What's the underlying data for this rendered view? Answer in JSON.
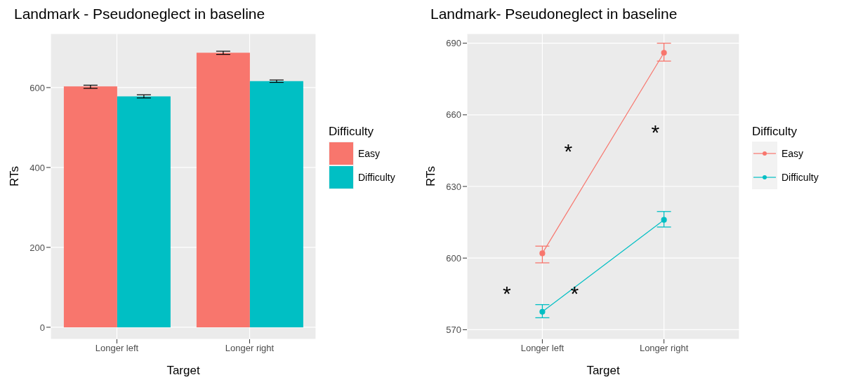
{
  "chart_data": [
    {
      "type": "bar",
      "title": "Landmark - Pseudoneglect in baseline",
      "xlabel": "Target",
      "ylabel": "RTs",
      "legend_title": "Difficulty",
      "legend": "right",
      "grid": true,
      "categories": [
        "Longer left",
        "Longer right"
      ],
      "ylim": [
        -30,
        735
      ],
      "yticks": [
        0,
        200,
        400,
        600
      ],
      "series": [
        {
          "name": "Easy",
          "color": "#f8766d",
          "values": [
            603,
            687
          ],
          "errors": [
            [
              598,
              606
            ],
            [
              683,
              691
            ]
          ]
        },
        {
          "name": "Difficulty",
          "color": "#00bfc4",
          "values": [
            578,
            616
          ],
          "errors": [
            [
              574,
              582
            ],
            [
              613,
              619
            ]
          ]
        }
      ]
    },
    {
      "type": "line",
      "title": "Landmark- Pseudoneglect in baseline",
      "xlabel": "Target",
      "ylabel": "RTs",
      "legend_title": "Difficulty",
      "legend": "right",
      "grid": true,
      "marker": "circle",
      "categories": [
        "Longer left",
        "Longer right"
      ],
      "ylim": [
        566,
        694
      ],
      "yticks": [
        570,
        600,
        630,
        660,
        690
      ],
      "series": [
        {
          "name": "Easy",
          "color": "#f8766d",
          "values": [
            602,
            686
          ],
          "errors": [
            [
              598,
              605
            ],
            [
              682.5,
              690
            ]
          ]
        },
        {
          "name": "Difficulty",
          "color": "#00bfc4",
          "values": [
            577.5,
            616
          ],
          "errors": [
            [
              575,
              580.5
            ],
            [
              613,
              619.5
            ]
          ]
        }
      ],
      "annotations": [
        "*",
        "*",
        "*",
        "*"
      ]
    }
  ]
}
